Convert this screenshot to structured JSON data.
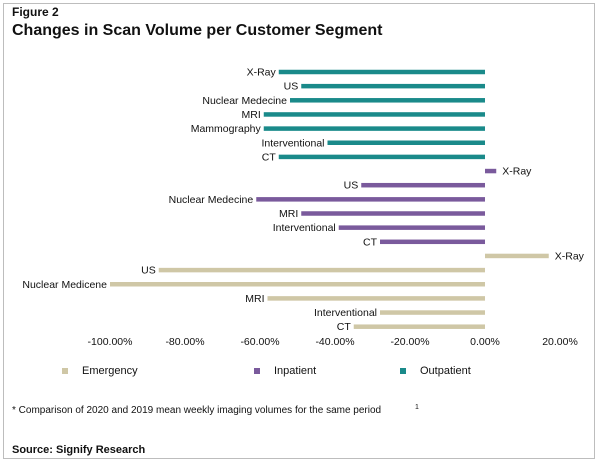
{
  "figure_label": "Figure 2",
  "title": "Changes in Scan Volume per Customer Segment",
  "footnote": "* Comparison of 2020 and 2019 mean weekly imaging volumes for the same period",
  "footnote_marker": "1",
  "source": "Source: Signify Research",
  "chart_data": {
    "type": "bar",
    "orientation": "horizontal",
    "xlim": [
      -1.0,
      0.2
    ],
    "x_ticks": [
      -1.0,
      -0.8,
      -0.6,
      -0.4,
      -0.2,
      0.0,
      0.2
    ],
    "x_tick_labels": [
      "-100.00%",
      "-80.00%",
      "-60.00%",
      "-40.00%",
      "-20.00%",
      "0.00%",
      "20.00%"
    ],
    "legend_position": "bottom",
    "series": [
      {
        "name": "Outpatient",
        "color": "#1a8a8a",
        "categories": [
          "X-Ray",
          "US",
          "Nuclear Medecine",
          "MRI",
          "Mammography",
          "Interventional",
          "CT"
        ],
        "values": [
          -0.55,
          -0.49,
          -0.52,
          -0.59,
          -0.59,
          -0.42,
          -0.55
        ]
      },
      {
        "name": "Inpatient",
        "color": "#7a5a9c",
        "categories": [
          "X-Ray",
          "US",
          "Nuclear Medecine",
          "MRI",
          "Interventional",
          "CT"
        ],
        "values": [
          0.03,
          -0.33,
          -0.61,
          -0.49,
          -0.39,
          -0.28
        ]
      },
      {
        "name": "Emergency",
        "color": "#cfc7a6",
        "categories": [
          "X-Ray",
          "US",
          "Nuclear Medicene",
          "MRI",
          "Interventional",
          "CT"
        ],
        "values": [
          0.17,
          -0.87,
          -1.0,
          -0.58,
          -0.28,
          -0.35
        ]
      }
    ],
    "legend": [
      "Emergency",
      "Inpatient",
      "Outpatient"
    ]
  }
}
